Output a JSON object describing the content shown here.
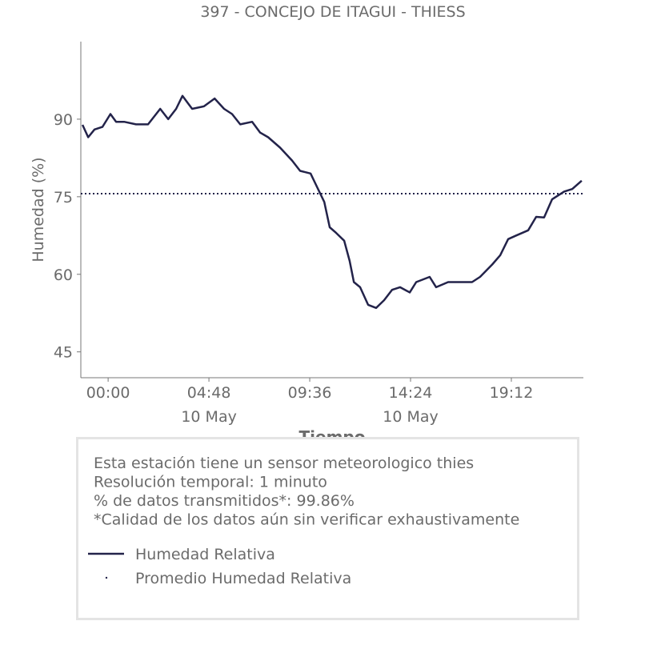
{
  "chart_data": {
    "type": "line",
    "title": "397 - CONCEJO DE ITAGUI - THIESS",
    "x_label": "Tiempo",
    "y_label": "Humedad (%)",
    "x": [
      -1.22,
      -0.95,
      -0.65,
      -0.27,
      0.11,
      0.38,
      0.76,
      1.33,
      1.9,
      2.48,
      2.86,
      3.24,
      3.54,
      4.0,
      4.57,
      5.07,
      5.52,
      5.9,
      6.29,
      6.86,
      7.24,
      7.62,
      8.19,
      8.76,
      9.14,
      9.64,
      9.9,
      10.29,
      10.55,
      10.86,
      11.24,
      11.5,
      11.7,
      12.0,
      12.38,
      12.76,
      13.14,
      13.52,
      13.9,
      14.36,
      14.67,
      15.31,
      15.62,
      16.19,
      16.95,
      17.33,
      17.71,
      18.29,
      18.67,
      19.05,
      19.43,
      20.0,
      20.38,
      20.76,
      21.14,
      21.71,
      22.1,
      22.55
    ],
    "series": [
      {
        "name": "Humedad Relativa",
        "color": "#23234a",
        "values": [
          88.9,
          86.5,
          88,
          88.5,
          91,
          89.5,
          89.5,
          89,
          89,
          92,
          90,
          92,
          94.5,
          92,
          92.5,
          94,
          92,
          91,
          89,
          89.5,
          87.4,
          86.5,
          84.5,
          82,
          80,
          79.5,
          77.3,
          74,
          69.1,
          68,
          66.5,
          62.6,
          58.5,
          57.5,
          54.1,
          53.5,
          55,
          57,
          57.5,
          56.5,
          58.5,
          59.5,
          57.5,
          58.5,
          58.5,
          58.5,
          59.5,
          61.9,
          63.7,
          66.8,
          67.5,
          68.5,
          71.1,
          71,
          74.5,
          76,
          76.5,
          78.1
        ]
      }
    ],
    "mean_line": {
      "name": "Promedio Humedad Relativa",
      "color": "#23234a",
      "value": 75.6
    },
    "xlim": [
      -1.3,
      22.63
    ],
    "xticks": [
      {
        "value": 0,
        "label": "00:00"
      },
      {
        "value": 4.8,
        "label": "04:48\n10 May"
      },
      {
        "value": 9.6,
        "label": "09:36"
      },
      {
        "value": 14.4,
        "label": "14:24\n10 May"
      },
      {
        "value": 19.2,
        "label": "19:12"
      }
    ],
    "ylim": [
      40,
      105
    ],
    "yticks": [
      45,
      60,
      75,
      90
    ],
    "info": [
      "Esta estación tiene un sensor meteorologico thies",
      "Resolución temporal: 1 minuto",
      "% de datos transmitidos*: 99.86%",
      "*Calidad de los datos aún sin verificar exhaustivamente"
    ]
  }
}
